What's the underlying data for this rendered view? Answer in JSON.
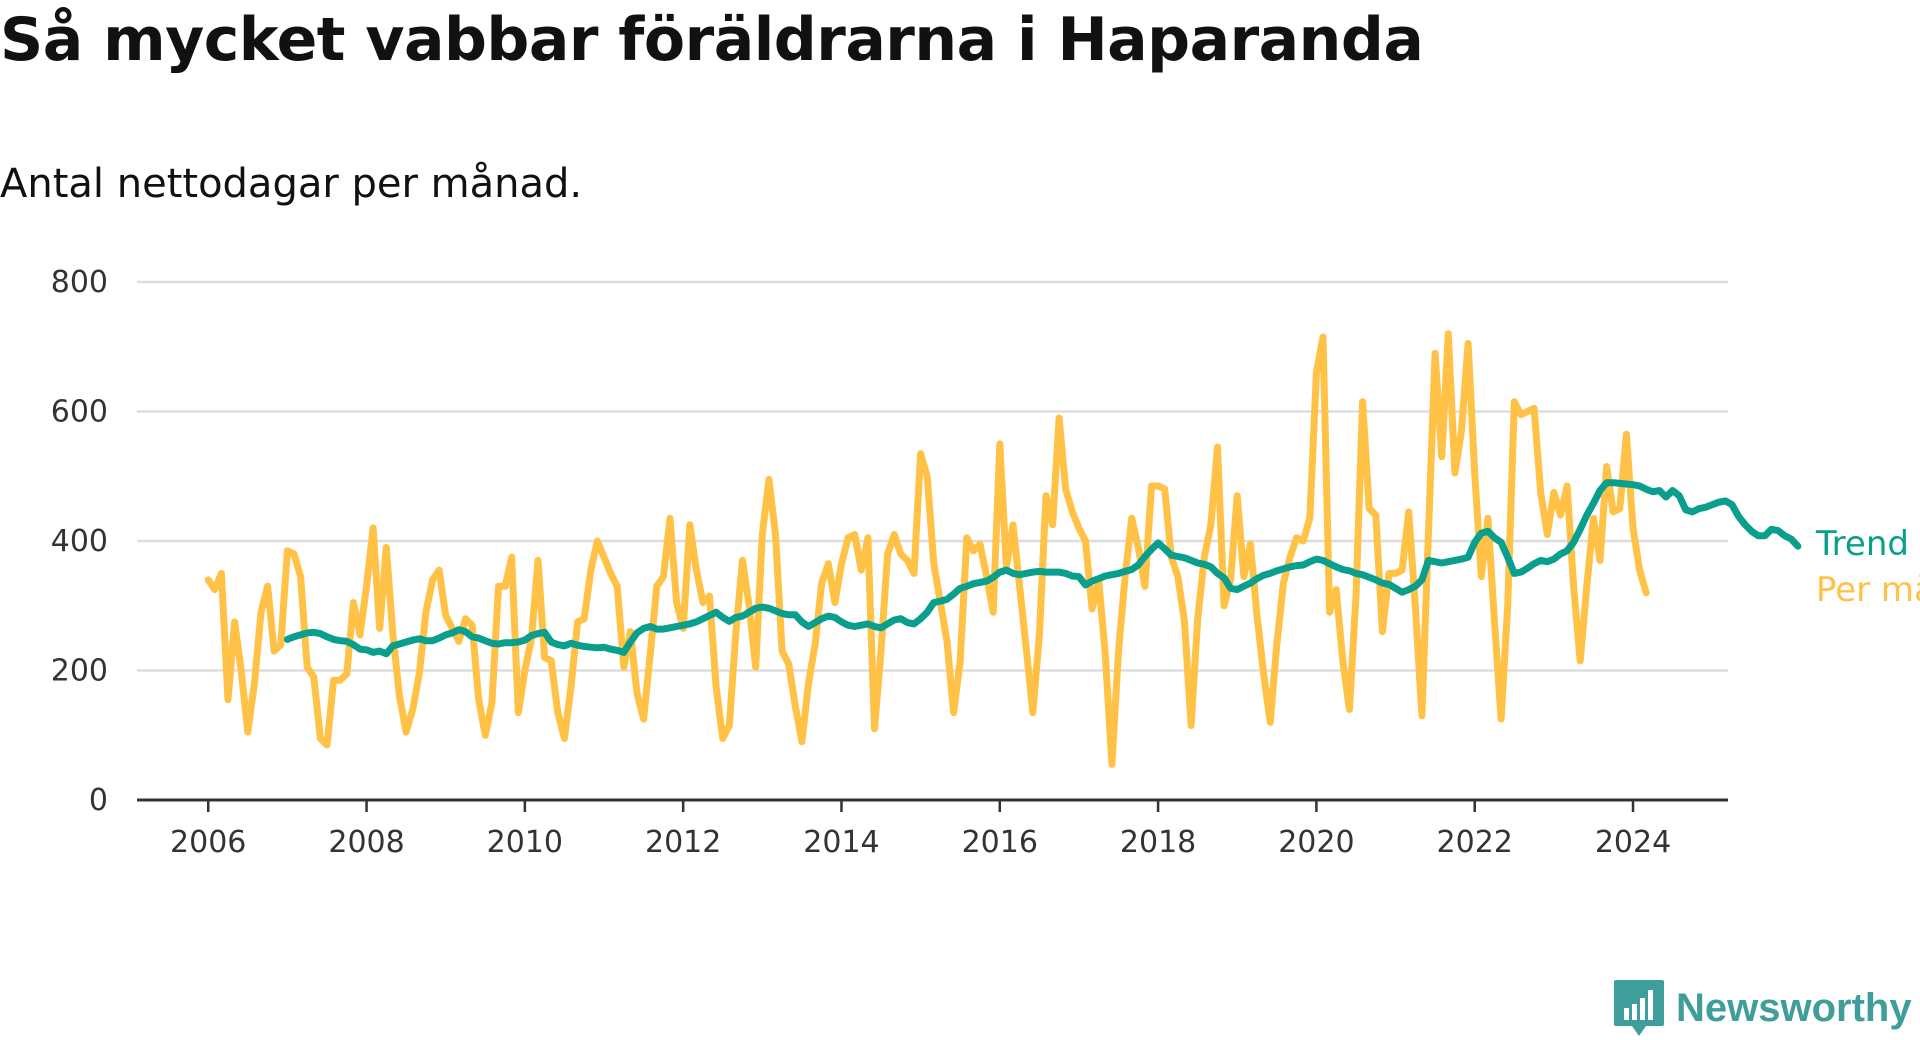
{
  "title": "Så mycket vabbar föräldrarna i Haparanda",
  "subtitle": "Antal nettodagar per månad.",
  "brand": {
    "name": "Newsworthy",
    "logo_icon": "newsworthy-logo-icon"
  },
  "colors": {
    "trend": "#0a9e8c",
    "monthly": "#ffc247",
    "grid": "#dddddd",
    "axis": "#333333"
  },
  "chart_data": {
    "type": "line",
    "xlabel": "",
    "ylabel": "",
    "xlim": [
      2005.1,
      2025.2
    ],
    "ylim": [
      0,
      800
    ],
    "x_ticks": [
      "2006",
      "2008",
      "2010",
      "2012",
      "2014",
      "2016",
      "2018",
      "2020",
      "2022",
      "2024"
    ],
    "y_ticks": [
      "0",
      "200",
      "400",
      "600",
      "800"
    ],
    "grid": true,
    "legend": "right-end-labels",
    "series": [
      {
        "name": "Per månad",
        "start": "2006-01",
        "step": "month",
        "values": [
          340,
          325,
          350,
          155,
          275,
          200,
          105,
          180,
          290,
          330,
          230,
          240,
          385,
          380,
          345,
          205,
          190,
          95,
          85,
          185,
          185,
          195,
          305,
          255,
          330,
          420,
          265,
          390,
          255,
          160,
          105,
          140,
          195,
          290,
          340,
          355,
          285,
          265,
          245,
          280,
          270,
          155,
          100,
          150,
          330,
          330,
          375,
          135,
          200,
          250,
          370,
          220,
          215,
          135,
          95,
          175,
          275,
          280,
          355,
          400,
          375,
          350,
          330,
          205,
          260,
          165,
          125,
          225,
          330,
          345,
          435,
          305,
          265,
          425,
          355,
          305,
          315,
          175,
          95,
          115,
          260,
          370,
          300,
          205,
          410,
          495,
          410,
          230,
          210,
          145,
          90,
          180,
          240,
          335,
          365,
          305,
          365,
          405,
          410,
          355,
          405,
          110,
          230,
          380,
          410,
          380,
          370,
          350,
          535,
          500,
          365,
          305,
          245,
          135,
          215,
          405,
          385,
          395,
          345,
          290,
          550,
          360,
          425,
          330,
          235,
          135,
          255,
          470,
          425,
          590,
          480,
          445,
          420,
          400,
          295,
          340,
          225,
          55,
          230,
          345,
          435,
          390,
          330,
          485,
          485,
          480,
          375,
          345,
          275,
          115,
          280,
          375,
          425,
          545,
          300,
          340,
          470,
          345,
          395,
          285,
          195,
          120,
          240,
          335,
          375,
          405,
          400,
          435,
          660,
          715,
          290,
          325,
          215,
          140,
          315,
          615,
          450,
          440,
          260,
          350,
          350,
          355,
          445,
          300,
          130,
          415,
          690,
          530,
          720,
          505,
          570,
          705,
          505,
          345,
          435,
          275,
          125,
          300,
          615,
          595,
          600,
          605,
          475,
          410,
          475,
          440,
          485,
          330,
          215,
          330,
          435,
          370,
          515,
          445,
          450,
          565,
          420,
          355,
          320
        ]
      },
      {
        "name": "Trend",
        "start": "2007-01",
        "step": "month",
        "values": [
          248,
          252,
          255,
          258,
          259,
          257,
          252,
          248,
          246,
          245,
          240,
          233,
          232,
          228,
          230,
          226,
          238,
          241,
          244,
          247,
          249,
          246,
          246,
          250,
          255,
          258,
          263,
          260,
          252,
          250,
          246,
          242,
          241,
          243,
          243,
          244,
          247,
          254,
          257,
          259,
          244,
          240,
          238,
          242,
          239,
          237,
          236,
          235,
          236,
          233,
          231,
          228,
          244,
          258,
          265,
          268,
          264,
          264,
          266,
          268,
          270,
          272,
          275,
          280,
          285,
          290,
          282,
          276,
          282,
          284,
          290,
          296,
          298,
          296,
          292,
          288,
          286,
          286,
          275,
          268,
          274,
          280,
          284,
          282,
          275,
          270,
          268,
          270,
          272,
          268,
          266,
          272,
          278,
          280,
          274,
          272,
          280,
          290,
          305,
          307,
          310,
          318,
          327,
          330,
          334,
          336,
          338,
          344,
          352,
          355,
          350,
          348,
          350,
          352,
          353,
          352,
          352,
          352,
          350,
          346,
          345,
          332,
          338,
          342,
          346,
          348,
          350,
          353,
          356,
          363,
          376,
          387,
          397,
          388,
          378,
          376,
          374,
          370,
          366,
          364,
          360,
          350,
          343,
          327,
          325,
          330,
          335,
          342,
          347,
          350,
          354,
          357,
          360,
          362,
          363,
          368,
          372,
          370,
          365,
          360,
          356,
          354,
          350,
          348,
          344,
          340,
          335,
          333,
          327,
          321,
          325,
          330,
          340,
          370,
          368,
          366,
          368,
          370,
          372,
          375,
          398,
          412,
          415,
          405,
          398,
          375,
          350,
          352,
          358,
          365,
          370,
          368,
          372,
          380,
          385,
          398,
          418,
          440,
          458,
          478,
          490,
          490,
          489,
          488,
          487,
          485,
          480,
          476,
          478,
          468,
          478,
          470,
          448,
          445,
          450,
          452,
          456,
          460,
          462,
          456,
          438,
          425,
          415,
          408,
          408,
          418,
          416,
          408,
          403,
          392
        ]
      }
    ]
  }
}
